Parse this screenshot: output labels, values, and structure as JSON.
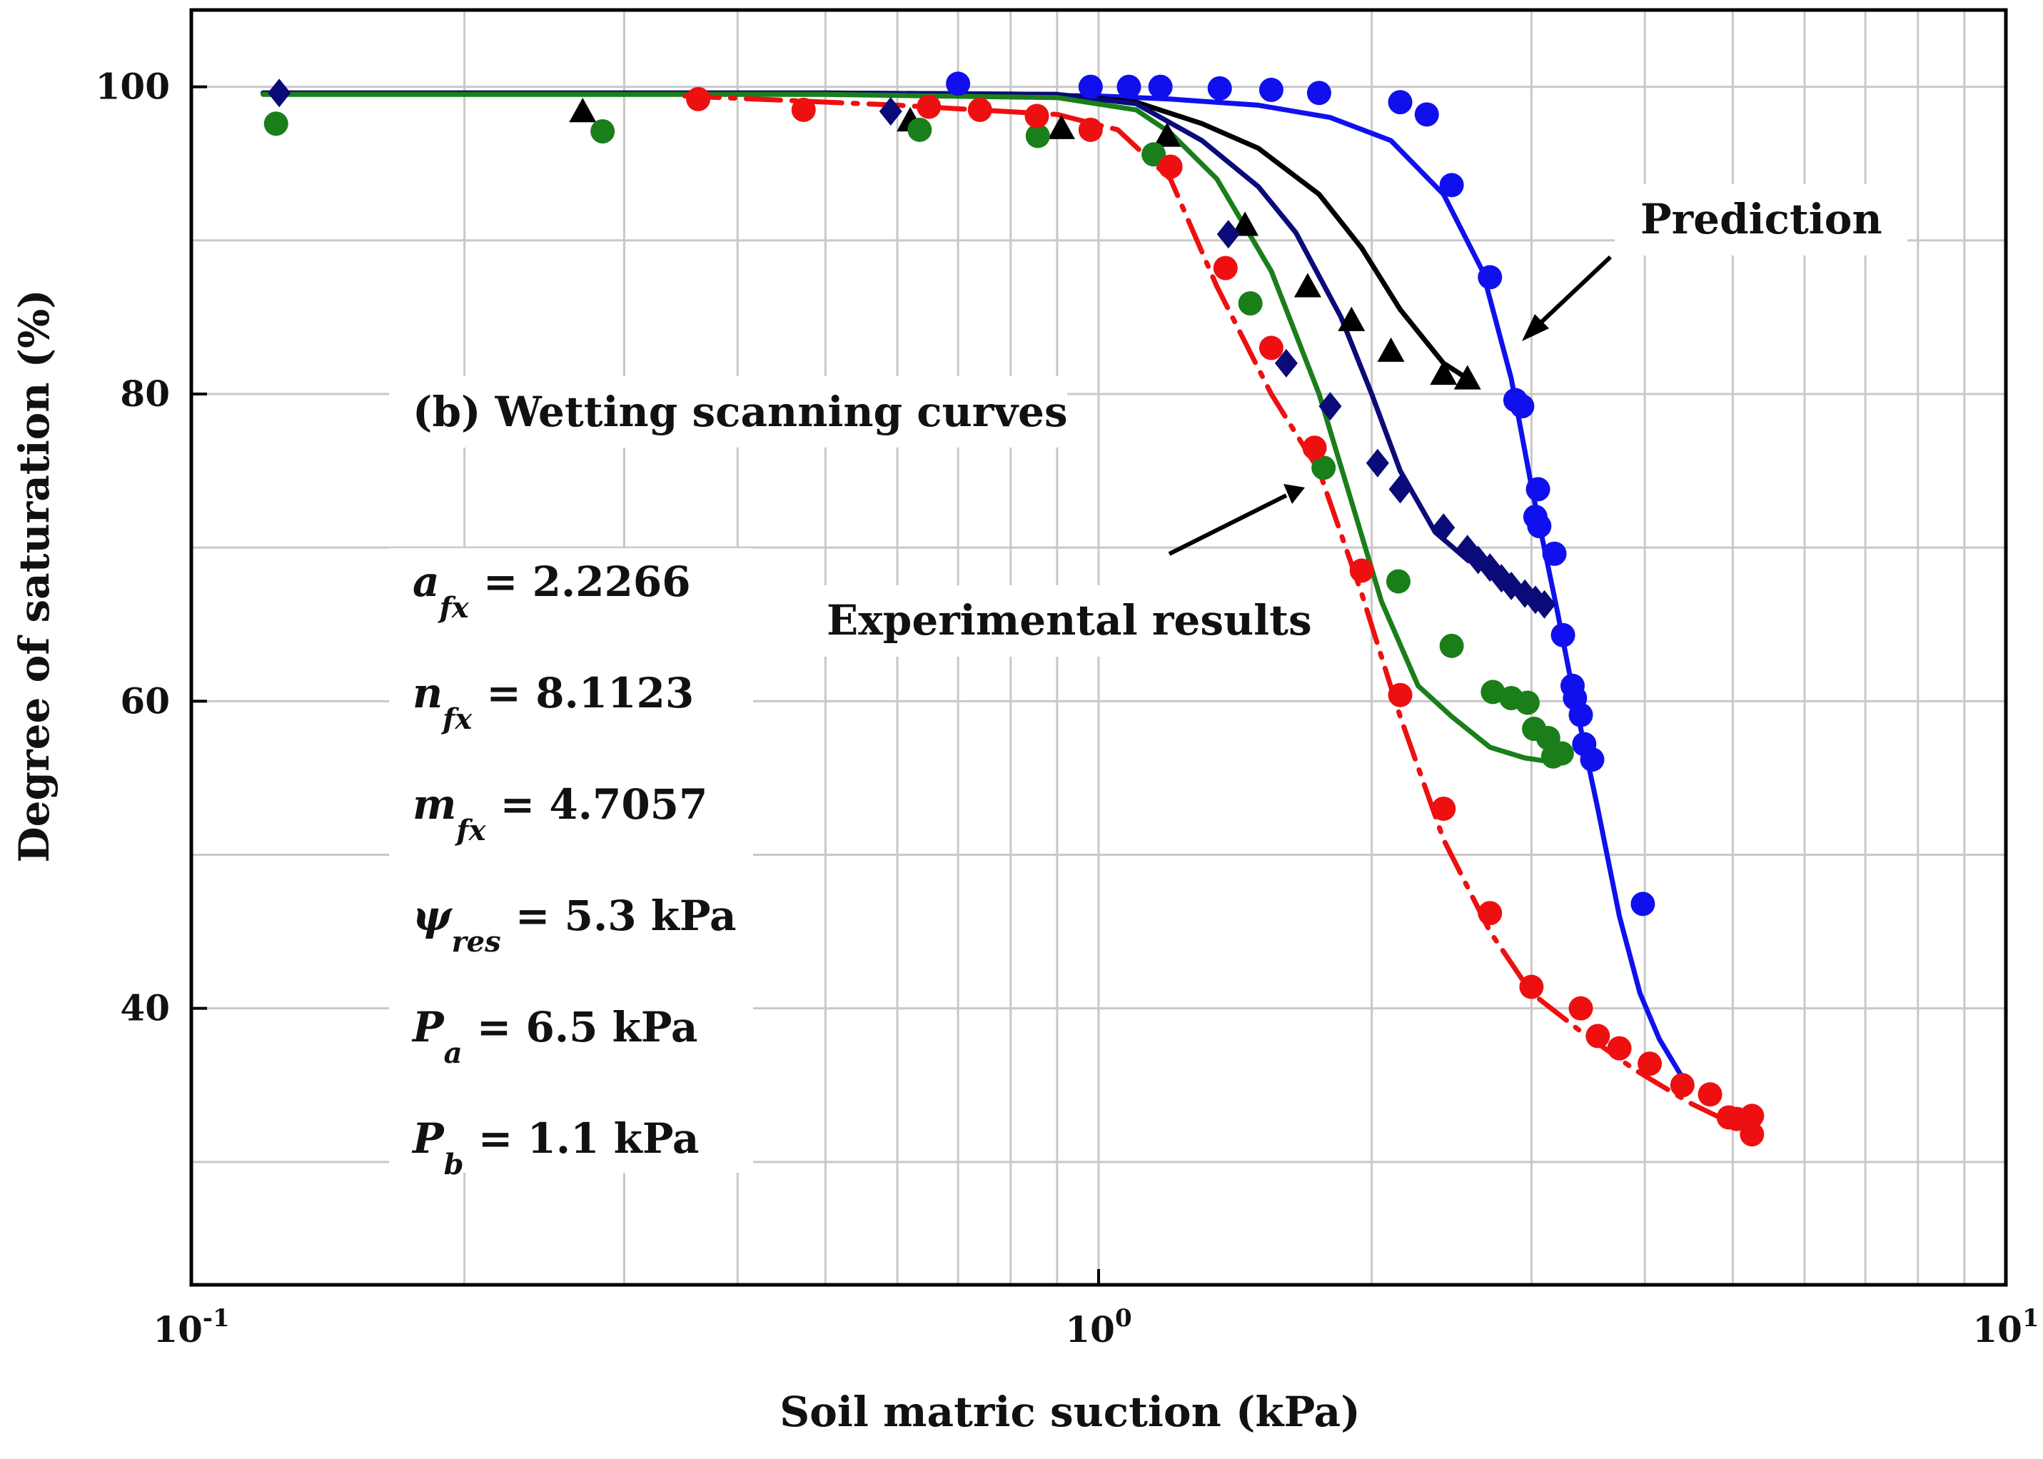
{
  "chart_data": {
    "type": "scatter",
    "xlabel": "Soil matric suction (kPa)",
    "ylabel": "Degree of saturation (%)",
    "x_scale": "log",
    "xlim": [
      0.1,
      10
    ],
    "ylim": [
      22,
      105
    ],
    "grid": true,
    "x_ticks": [
      {
        "value": 0.1,
        "base": "10",
        "exp": "-1"
      },
      {
        "value": 1,
        "base": "10",
        "exp": "0"
      },
      {
        "value": 10,
        "base": "10",
        "exp": "1"
      }
    ],
    "y_ticks": [
      {
        "value": 40,
        "label": "40"
      },
      {
        "value": 60,
        "label": "60"
      },
      {
        "value": 80,
        "label": "80"
      },
      {
        "value": 100,
        "label": "100"
      }
    ],
    "panel_label": "(b) Wetting scanning curves",
    "annotations": {
      "prediction": "Prediction",
      "experimental": "Experimental results"
    },
    "parameters": [
      {
        "sym": "a",
        "sub": "fx",
        "text": " = 2.2266"
      },
      {
        "sym": "n",
        "sub": "fx",
        "text": " = 8.1123"
      },
      {
        "sym": "m",
        "sub": "fx",
        "text": " = 4.7057"
      },
      {
        "sym": "ψ",
        "sub": "res",
        "text": " = 5.3 kPa"
      },
      {
        "sym": "P",
        "sub": "a",
        "text": " = 6.5 kPa"
      },
      {
        "sym": "P",
        "sub": "b",
        "text": " = 1.1 kPa"
      }
    ],
    "series": [
      {
        "name": "blue-prediction",
        "kind": "line",
        "color": "#1010ee",
        "dash": "solid",
        "x": [
          0.7,
          1.0,
          1.2,
          1.5,
          1.8,
          2.1,
          2.4,
          2.65,
          2.85,
          3.0,
          3.2,
          3.35,
          3.55,
          3.75,
          3.95,
          4.15,
          4.4
        ],
        "y": [
          99.5,
          99.4,
          99.2,
          98.8,
          98.0,
          96.5,
          93.0,
          88.0,
          81.0,
          74.0,
          66.0,
          60.0,
          53.0,
          46.0,
          41.0,
          38.0,
          35.5
        ]
      },
      {
        "name": "blue-experimental",
        "kind": "marker",
        "marker": "circle",
        "color": "#1010ee",
        "x": [
          0.7,
          0.98,
          1.08,
          1.17,
          1.36,
          1.55,
          1.75,
          2.15,
          2.3,
          2.45,
          2.7,
          2.88,
          2.93,
          3.05,
          3.03,
          3.06,
          3.18,
          3.25,
          3.33,
          3.35,
          3.4,
          3.43,
          3.5,
          3.98
        ],
        "y": [
          100.2,
          100.0,
          100.0,
          100.0,
          99.9,
          99.8,
          99.6,
          99.0,
          98.2,
          93.6,
          87.6,
          79.6,
          79.2,
          73.8,
          72.0,
          71.4,
          69.6,
          64.3,
          61.0,
          60.2,
          59.1,
          57.2,
          56.2,
          46.8
        ]
      },
      {
        "name": "black-prediction",
        "kind": "line",
        "color": "#000000",
        "dash": "solid",
        "x": [
          0.12,
          0.5,
          0.9,
          1.1,
          1.3,
          1.5,
          1.75,
          1.95,
          2.15,
          2.4,
          2.55
        ],
        "y": [
          99.6,
          99.6,
          99.5,
          99.0,
          97.6,
          96.0,
          93.0,
          89.5,
          85.5,
          82.0,
          81.0
        ]
      },
      {
        "name": "black-experimental",
        "kind": "marker",
        "marker": "triangle",
        "color": "#000000",
        "x": [
          0.27,
          0.62,
          0.91,
          1.19,
          1.45,
          1.7,
          1.9,
          2.1,
          2.4,
          2.55
        ],
        "y": [
          98.4,
          97.8,
          97.3,
          96.8,
          91.0,
          87.0,
          84.8,
          82.8,
          81.3,
          81.0
        ]
      },
      {
        "name": "navy-prediction",
        "kind": "line",
        "color": "#0a0a78",
        "dash": "solid",
        "x": [
          0.12,
          0.5,
          0.9,
          1.1,
          1.3,
          1.5,
          1.65,
          1.85,
          2.0,
          2.15,
          2.35,
          2.55,
          2.8,
          3.0,
          3.1
        ],
        "y": [
          99.6,
          99.6,
          99.5,
          98.9,
          96.5,
          93.5,
          90.5,
          85.0,
          80.0,
          75.0,
          71.0,
          69.2,
          68.0,
          67.0,
          66.5
        ]
      },
      {
        "name": "navy-experimental",
        "kind": "marker",
        "marker": "diamond",
        "color": "#0a0a78",
        "x": [
          0.125,
          0.59,
          1.39,
          1.61,
          1.8,
          2.03,
          2.15,
          2.4,
          2.55,
          2.62,
          2.7,
          2.78,
          2.85,
          2.95,
          3.03,
          3.1
        ],
        "y": [
          99.6,
          98.4,
          90.4,
          82.0,
          79.2,
          75.5,
          73.8,
          71.3,
          69.9,
          69.2,
          68.7,
          68.0,
          67.5,
          67.0,
          66.6,
          66.3
        ]
      },
      {
        "name": "green-prediction",
        "kind": "line",
        "color": "#1a7e1a",
        "dash": "solid",
        "x": [
          0.12,
          0.5,
          0.9,
          1.1,
          1.2,
          1.35,
          1.55,
          1.75,
          1.9,
          2.05,
          2.25,
          2.45,
          2.7,
          2.95,
          3.2
        ],
        "y": [
          99.5,
          99.5,
          99.3,
          98.5,
          97.0,
          94.0,
          88.0,
          80.0,
          73.0,
          66.5,
          61.0,
          59.0,
          57.0,
          56.3,
          56.0
        ]
      },
      {
        "name": "green-experimental",
        "kind": "marker",
        "marker": "circle",
        "color": "#1a7e1a",
        "x": [
          0.124,
          0.284,
          0.635,
          0.857,
          1.15,
          1.47,
          1.77,
          2.14,
          2.45,
          2.72,
          2.85,
          2.97,
          3.02,
          3.13,
          3.17,
          3.24
        ],
        "y": [
          97.6,
          97.1,
          97.2,
          96.8,
          95.6,
          85.9,
          75.2,
          67.8,
          63.6,
          60.6,
          60.2,
          59.9,
          58.2,
          57.6,
          56.4,
          56.6
        ]
      },
      {
        "name": "red-prediction",
        "kind": "line",
        "color": "#ee1010",
        "dash": "dashdot",
        "x": [
          0.35,
          0.6,
          0.9,
          1.05,
          1.2,
          1.35,
          1.55,
          1.75,
          1.95,
          2.15,
          2.4,
          2.7,
          3.0,
          3.4,
          3.9,
          4.5,
          5.2
        ],
        "y": [
          99.4,
          98.8,
          98.2,
          97.2,
          94.0,
          87.0,
          80.0,
          75.0,
          67.0,
          59.0,
          51.0,
          45.0,
          41.0,
          38.5,
          36.0,
          33.8,
          32.0
        ]
      },
      {
        "name": "red-experimental",
        "kind": "marker",
        "marker": "circle",
        "color": "#ee1010",
        "x": [
          0.362,
          0.473,
          0.65,
          0.74,
          0.855,
          0.98,
          1.2,
          1.38,
          1.55,
          1.73,
          1.95,
          2.15,
          2.4,
          2.7,
          3.0,
          3.4,
          3.55,
          3.75,
          4.05,
          4.4,
          4.72,
          4.95,
          5.05,
          5.25,
          5.25
        ],
        "y": [
          99.2,
          98.5,
          98.7,
          98.5,
          98.1,
          97.2,
          94.8,
          88.2,
          83.0,
          76.5,
          68.5,
          60.4,
          53.0,
          46.2,
          41.4,
          40.0,
          38.2,
          37.4,
          36.4,
          35.0,
          34.4,
          32.9,
          32.8,
          31.8,
          33.0
        ]
      }
    ]
  }
}
